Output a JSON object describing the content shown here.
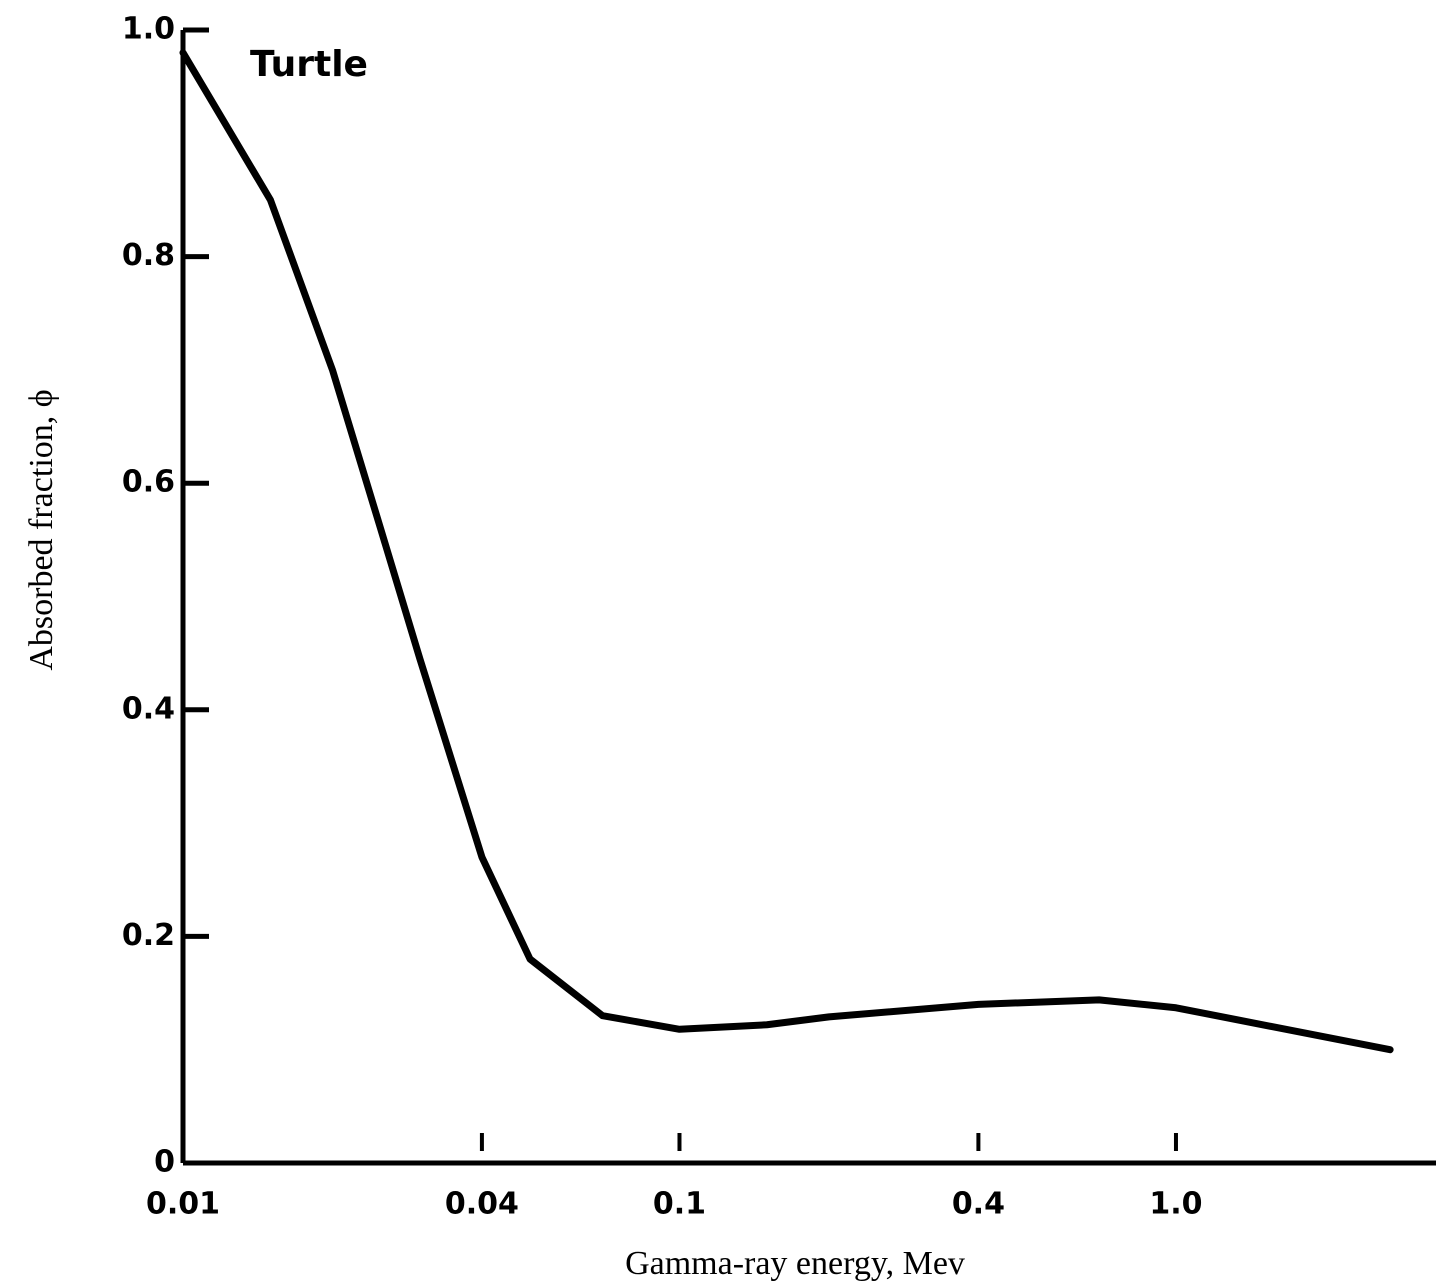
{
  "chart_data": {
    "type": "line",
    "annotation": "Turtle",
    "xlabel": "Gamma-ray energy, Mev",
    "ylabel": "Absorbed fraction, ϕ",
    "xscale": "log",
    "x": [
      0.01,
      0.015,
      0.02,
      0.025,
      0.03,
      0.04,
      0.05,
      0.07,
      0.1,
      0.15,
      0.2,
      0.4,
      0.7,
      1.0,
      2.7
    ],
    "series": [
      {
        "color": "#000000",
        "values": [
          0.98,
          0.85,
          0.7,
          0.56,
          0.445,
          0.27,
          0.18,
          0.13,
          0.118,
          0.122,
          0.129,
          0.14,
          0.144,
          0.137,
          0.1
        ]
      }
    ],
    "xlim": [
      0.01,
      3.34
    ],
    "xticks": [
      0.01,
      0.04,
      0.1,
      0.4,
      {
        "value": 1,
        "label": "1.0"
      }
    ],
    "ylim": [
      0,
      1
    ],
    "yticks": [
      0,
      0.2,
      0.4,
      0.6,
      0.8,
      {
        "value": 1,
        "label": "1.0"
      }
    ],
    "grid": false
  }
}
